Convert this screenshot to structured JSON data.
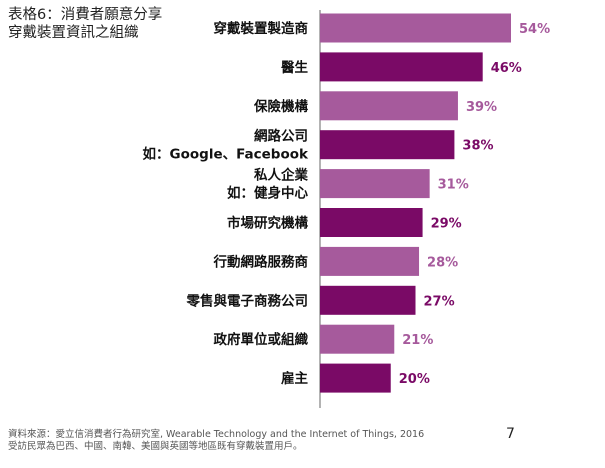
{
  "title_lines": [
    "表格6：消費者願意分享",
    "穿戴裝置資訊之組織"
  ],
  "source_lines": [
    "資料來源：愛立信消費者行為研究室, Wearable Technology and the Internet of Things, 2016",
    "受訪民眾為巴西、中國、南韓、美國與英國等地區既有穿戴裝置用戶。"
  ],
  "page_number": "7",
  "colors": {
    "light": "#a65a9c",
    "dark": "#7a0a66",
    "axis": "#9a9a9a"
  },
  "chart_data": {
    "type": "bar",
    "orientation": "horizontal",
    "categories": [
      [
        "穿戴裝置製造商"
      ],
      [
        "醫生"
      ],
      [
        "保險機構"
      ],
      [
        "網路公司",
        "如：Google、Facebook"
      ],
      [
        "私人企業",
        "如：健身中心"
      ],
      [
        "市場研究機構"
      ],
      [
        "行動網路服務商"
      ],
      [
        "零售與電子商務公司"
      ],
      [
        "政府單位或組織"
      ],
      [
        "雇主"
      ]
    ],
    "values": [
      54,
      46,
      39,
      38,
      31,
      29,
      28,
      27,
      21,
      20
    ],
    "value_labels": [
      "54%",
      "46%",
      "39%",
      "38%",
      "31%",
      "29%",
      "28%",
      "27%",
      "21%",
      "20%"
    ],
    "bar_shade": [
      "light",
      "dark",
      "light",
      "dark",
      "light",
      "dark",
      "light",
      "dark",
      "light",
      "dark"
    ],
    "xlim": [
      0,
      54
    ],
    "grid": false,
    "legend": "none"
  }
}
